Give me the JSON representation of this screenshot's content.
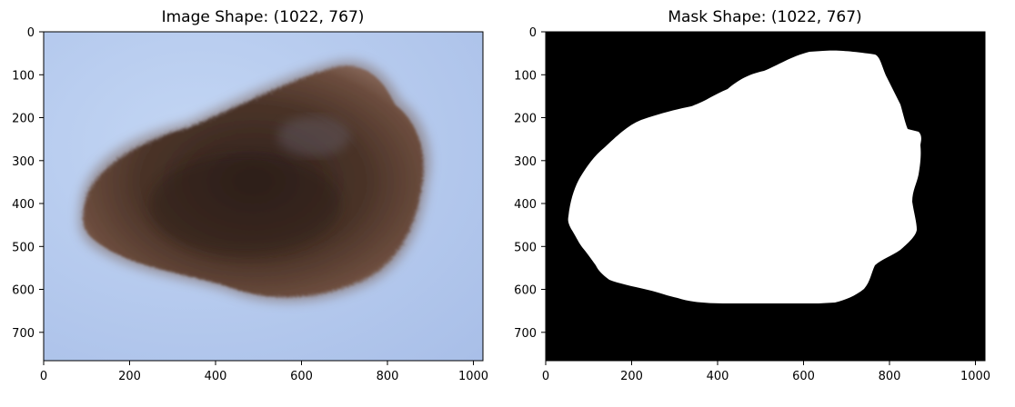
{
  "panels": [
    {
      "title": "Image Shape: (1022, 767)",
      "x_ticks": [
        "0",
        "200",
        "400",
        "600",
        "800",
        "1000"
      ],
      "y_ticks": [
        "0",
        "100",
        "200",
        "300",
        "400",
        "500",
        "600",
        "700"
      ],
      "content": "dermoscopy-photo-of-pigmented-skin-lesion",
      "colors": {
        "background": "#b9cdf0",
        "lesion": "#4a3328"
      }
    },
    {
      "title": "Mask Shape: (1022, 767)",
      "x_ticks": [
        "0",
        "200",
        "400",
        "600",
        "800",
        "1000"
      ],
      "y_ticks": [
        "0",
        "100",
        "200",
        "300",
        "400",
        "500",
        "600",
        "700"
      ],
      "content": "binary-segmentation-mask",
      "colors": {
        "background": "#000000",
        "foreground": "#ffffff"
      }
    }
  ]
}
